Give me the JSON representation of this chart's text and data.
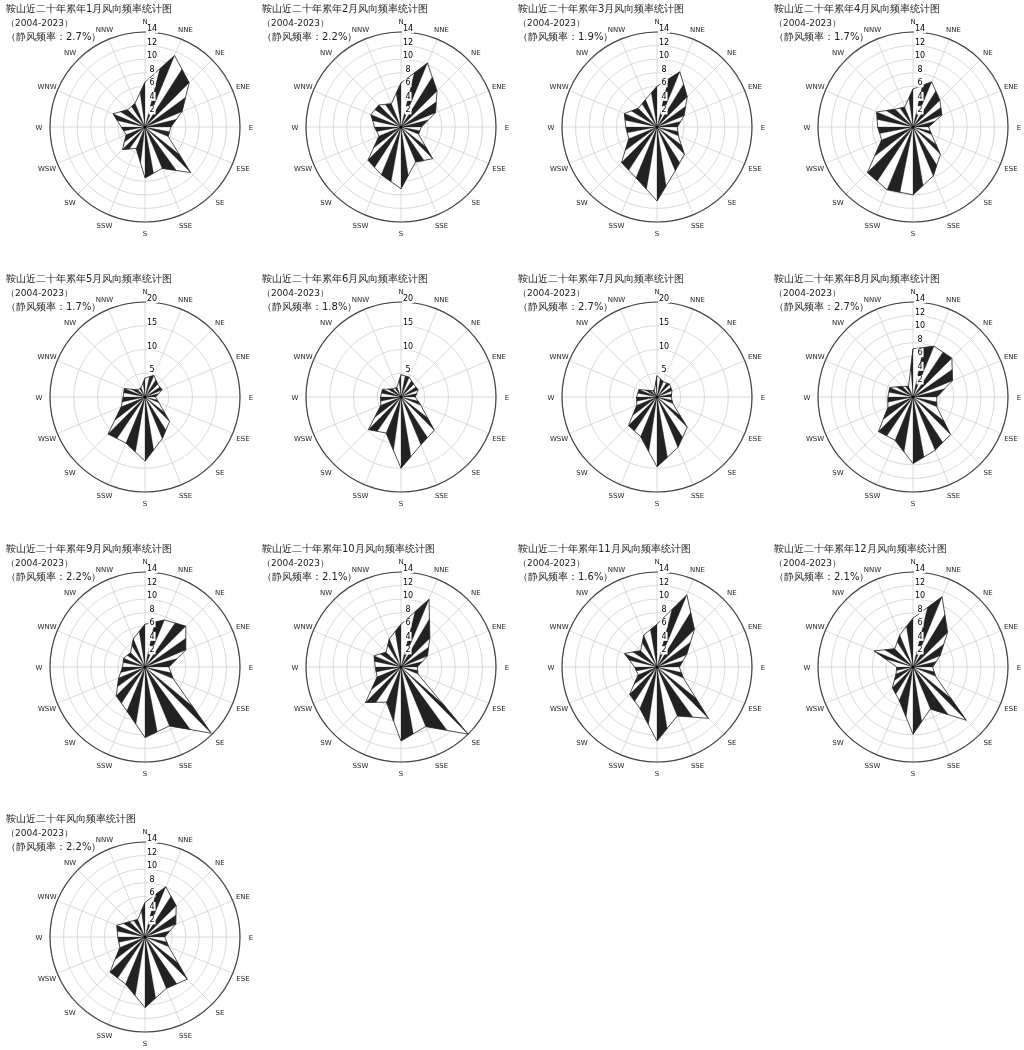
{
  "chart_data": [
    {
      "type": "radar",
      "title": "鞍山近二十年累年1月风向频率统计图",
      "subtitle": "（2004-2023）",
      "annotations": [
        "（静风频率：2.7%）"
      ],
      "categories": [
        "N",
        "NNE",
        "NE",
        "ENE",
        "E",
        "ESE",
        "SE",
        "SSE",
        "S",
        "SSW",
        "SW",
        "WSW",
        "W",
        "WNW",
        "NW",
        "NNW"
      ],
      "ylim": [
        0,
        14
      ],
      "yticks": [
        2,
        4,
        6,
        8,
        10,
        12,
        14
      ],
      "grid": true,
      "series": [
        {
          "color": "#222222",
          "values": [
            6.6,
            11.4,
            9.2,
            5.9,
            3.8,
            3.7,
            9.5,
            6.6,
            7.5,
            3.4,
            4.7,
            3.0,
            3.5,
            5.1,
            3.6,
            3.8
          ]
        }
      ]
    },
    {
      "type": "radar",
      "title": "鞍山近二十年累年2月风向频率统计图",
      "subtitle": "（2004-2023）",
      "annotations": [
        "（静风频率：2.2%）"
      ],
      "categories": [
        "N",
        "NNE",
        "NE",
        "ENE",
        "E",
        "ESE",
        "SE",
        "SSE",
        "S",
        "SSW",
        "SW",
        "WSW",
        "W",
        "WNW",
        "NW",
        "NNW"
      ],
      "ylim": [
        0,
        14
      ],
      "yticks": [
        2,
        4,
        6,
        8,
        10,
        12,
        14
      ],
      "grid": true,
      "series": [
        {
          "color": "#222222",
          "values": [
            6.5,
            10.2,
            7.5,
            5.5,
            3.0,
            2.8,
            6.6,
            5.6,
            9.1,
            7.6,
            6.9,
            3.5,
            3.9,
            4.8,
            4.6,
            3.7
          ]
        }
      ]
    },
    {
      "type": "radar",
      "title": "鞍山近二十年累年3月风向频率统计图",
      "subtitle": "（2004-2023）",
      "annotations": [
        "（静风频率：1.9%）"
      ],
      "categories": [
        "N",
        "NNE",
        "NE",
        "ENE",
        "E",
        "ESE",
        "SE",
        "SSE",
        "S",
        "SSW",
        "SW",
        "WSW",
        "W",
        "WNW",
        "NW",
        "NNW"
      ],
      "ylim": [
        0,
        14
      ],
      "yticks": [
        2,
        4,
        6,
        8,
        10,
        12,
        14
      ],
      "grid": true,
      "series": [
        {
          "color": "#222222",
          "values": [
            6.0,
            8.8,
            6.3,
            4.3,
            3.0,
            3.4,
            5.7,
            7.0,
            10.9,
            8.1,
            7.4,
            4.5,
            4.6,
            5.2,
            3.9,
            4.4
          ]
        }
      ]
    },
    {
      "type": "radar",
      "title": "鞍山近二十年累年4月风向频率统计图",
      "subtitle": "（2004-2023）",
      "annotations": [
        "（静风频率：1.7%）"
      ],
      "categories": [
        "N",
        "NNE",
        "NE",
        "ENE",
        "E",
        "ESE",
        "SE",
        "SSE",
        "S",
        "SSW",
        "SW",
        "WSW",
        "W",
        "WNW",
        "NW",
        "NNW"
      ],
      "ylim": [
        0,
        14
      ],
      "yticks": [
        2,
        4,
        6,
        8,
        10,
        12,
        14
      ],
      "grid": true,
      "series": [
        {
          "color": "#222222",
          "values": [
            5.6,
            7.2,
            5.6,
            4.6,
            2.3,
            3.0,
            5.7,
            7.8,
            10.0,
            10.0,
            9.5,
            5.0,
            5.2,
            5.8,
            3.7,
            3.2
          ]
        }
      ]
    },
    {
      "type": "radar",
      "title": "鞍山近二十年累年5月风向频率统计图",
      "subtitle": "（2004-2023）",
      "annotations": [
        "（静风频率：1.7%）"
      ],
      "categories": [
        "N",
        "NNE",
        "NE",
        "ENE",
        "E",
        "ESE",
        "SE",
        "SSE",
        "S",
        "SSW",
        "SW",
        "WSW",
        "W",
        "WNW",
        "NW",
        "NNW"
      ],
      "ylim": [
        0,
        20
      ],
      "yticks": [
        5,
        10,
        15,
        20
      ],
      "grid": true,
      "series": [
        {
          "color": "#222222",
          "values": [
            4.0,
            4.9,
            3.8,
            3.9,
            2.2,
            3.2,
            7.3,
            9.5,
            13.5,
            10.5,
            11.0,
            5.4,
            4.6,
            4.7,
            2.1,
            2.1
          ]
        }
      ]
    },
    {
      "type": "radar",
      "title": "鞍山近二十年累年6月风向频率统计图",
      "subtitle": "（2004-2023）",
      "annotations": [
        "（静风频率：1.8%）"
      ],
      "categories": [
        "N",
        "NNE",
        "NE",
        "ENE",
        "E",
        "ESE",
        "SE",
        "SSE",
        "S",
        "SSW",
        "SW",
        "WSW",
        "W",
        "WNW",
        "NW",
        "NNW"
      ],
      "ylim": [
        0,
        20
      ],
      "yticks": [
        5,
        10,
        15,
        20
      ],
      "grid": true,
      "series": [
        {
          "color": "#222222",
          "values": [
            4.7,
            4.5,
            3.8,
            3.9,
            3.0,
            4.5,
            9.9,
            10.9,
            15.0,
            8.2,
            9.7,
            4.6,
            4.3,
            4.2,
            2.4,
            2.2
          ]
        }
      ]
    },
    {
      "type": "radar",
      "title": "鞍山近二十年累年7月风向频率统计图",
      "subtitle": "（2004-2023）",
      "annotations": [
        "（静风频率：2.7%）"
      ],
      "categories": [
        "N",
        "NNE",
        "NE",
        "ENE",
        "E",
        "ESE",
        "SE",
        "SSE",
        "S",
        "SSW",
        "SW",
        "WSW",
        "W",
        "WNW",
        "NW",
        "NNW"
      ],
      "ylim": [
        0,
        20
      ],
      "yticks": [
        5,
        10,
        15,
        20
      ],
      "grid": true,
      "series": [
        {
          "color": "#222222",
          "values": [
            4.5,
            3.5,
            3.8,
            3.4,
            3.0,
            3.6,
            9.0,
            11.5,
            14.7,
            9.0,
            8.5,
            4.6,
            4.3,
            4.1,
            1.9,
            1.5
          ]
        }
      ]
    },
    {
      "type": "radar",
      "title": "鞍山近二十年累年8月风向频率统计图",
      "subtitle": "（2004-2023）",
      "annotations": [
        "（静风频率：2.7%）"
      ],
      "categories": [
        "N",
        "NNE",
        "NE",
        "ENE",
        "E",
        "ESE",
        "SE",
        "SSE",
        "S",
        "SSW",
        "SW",
        "WSW",
        "W",
        "WNW",
        "NW",
        "NNW"
      ],
      "ylim": [
        0,
        14
      ],
      "yticks": [
        2,
        4,
        6,
        8,
        10,
        12,
        14
      ],
      "grid": true,
      "series": [
        {
          "color": "#222222",
          "values": [
            7.1,
            8.1,
            8.1,
            6.3,
            3.5,
            3.8,
            7.8,
            8.5,
            9.8,
            6.9,
            7.2,
            4.0,
            3.7,
            3.7,
            2.2,
            1.7
          ]
        }
      ]
    },
    {
      "type": "radar",
      "title": "鞍山近二十年累年9月风向频率统计图",
      "subtitle": "（2004-2023）",
      "annotations": [
        "（静风频率：2.2%）"
      ],
      "categories": [
        "N",
        "NNE",
        "NE",
        "ENE",
        "E",
        "ESE",
        "SE",
        "SSE",
        "S",
        "SSW",
        "SW",
        "WSW",
        "W",
        "WNW",
        "NW",
        "NNW"
      ],
      "ylim": [
        0,
        14
      ],
      "yticks": [
        2,
        4,
        6,
        8,
        10,
        12,
        14
      ],
      "grid": true,
      "series": [
        {
          "color": "#222222",
          "values": [
            6.3,
            7.5,
            8.5,
            6.5,
            3.5,
            4.5,
            13.8,
            9.4,
            10.4,
            7.0,
            6.0,
            4.2,
            3.3,
            3.4,
            3.0,
            4.5
          ]
        }
      ]
    },
    {
      "type": "radar",
      "title": "鞍山近二十年累年10月风向频率统计图",
      "subtitle": "（2004-2023）",
      "annotations": [
        "（静风频率：2.1%）"
      ],
      "categories": [
        "N",
        "NNE",
        "NE",
        "ENE",
        "E",
        "ESE",
        "SE",
        "SSE",
        "S",
        "SSW",
        "SW",
        "WSW",
        "W",
        "WNW",
        "NW",
        "NNW"
      ],
      "ylim": [
        0,
        14
      ],
      "yticks": [
        2,
        4,
        6,
        8,
        10,
        12,
        14
      ],
      "grid": true,
      "series": [
        {
          "color": "#222222",
          "values": [
            6.3,
            10.8,
            6.0,
            4.2,
            2.4,
            2.7,
            14.0,
            9.5,
            10.9,
            5.6,
            7.4,
            3.8,
            3.8,
            4.3,
            3.1,
            4.5
          ]
        }
      ]
    },
    {
      "type": "radar",
      "title": "鞍山近二十年累年11月风向频率统计图",
      "subtitle": "（2004-2023）",
      "annotations": [
        "（静风频率：1.6%）"
      ],
      "categories": [
        "N",
        "NNE",
        "NE",
        "ENE",
        "E",
        "ESE",
        "SE",
        "SSE",
        "S",
        "SSW",
        "SW",
        "WSW",
        "W",
        "WNW",
        "NW",
        "NNW"
      ],
      "ylim": [
        0,
        14
      ],
      "yticks": [
        2,
        4,
        6,
        8,
        10,
        12,
        14
      ],
      "grid": true,
      "series": [
        {
          "color": "#222222",
          "values": [
            6.3,
            11.5,
            7.8,
            4.7,
            3.3,
            4.2,
            10.7,
            7.8,
            10.9,
            6.6,
            5.7,
            3.0,
            3.3,
            5.2,
            3.4,
            5.1
          ]
        }
      ]
    },
    {
      "type": "radar",
      "title": "鞍山近二十年累年12月风向频率统计图",
      "subtitle": "（2004-2023）",
      "annotations": [
        "（静风频率：2.1%）"
      ],
      "categories": [
        "N",
        "NNE",
        "NE",
        "ENE",
        "E",
        "ESE",
        "SE",
        "SSE",
        "S",
        "SSW",
        "SW",
        "WSW",
        "W",
        "WNW",
        "NW",
        "NNW"
      ],
      "ylim": [
        0,
        14
      ],
      "yticks": [
        2,
        4,
        6,
        8,
        10,
        12,
        14
      ],
      "grid": true,
      "series": [
        {
          "color": "#222222",
          "values": [
            7.2,
            11.2,
            7.2,
            4.3,
            2.9,
            3.6,
            11.1,
            6.7,
            9.9,
            5.3,
            4.3,
            2.7,
            2.4,
            6.2,
            3.8,
            5.1
          ]
        }
      ]
    },
    {
      "type": "radar",
      "title": "鞍山近二十年风向频率统计图",
      "subtitle": "（2004-2023）",
      "annotations": [
        "（静风频率：2.2%）"
      ],
      "categories": [
        "N",
        "NNE",
        "NE",
        "ENE",
        "E",
        "ESE",
        "SE",
        "SSE",
        "S",
        "SSW",
        "SW",
        "WSW",
        "W",
        "WNW",
        "NW",
        "NNW"
      ],
      "ylim": [
        0,
        14
      ],
      "yticks": [
        2,
        4,
        6,
        8,
        10,
        12,
        14
      ],
      "grid": true,
      "series": [
        {
          "color": "#222222",
          "values": [
            5.1,
            8.0,
            6.5,
            4.9,
            2.9,
            3.8,
            8.8,
            8.2,
            10.4,
            7.5,
            7.3,
            4.0,
            4.0,
            4.5,
            3.2,
            2.8
          ]
        }
      ]
    }
  ]
}
